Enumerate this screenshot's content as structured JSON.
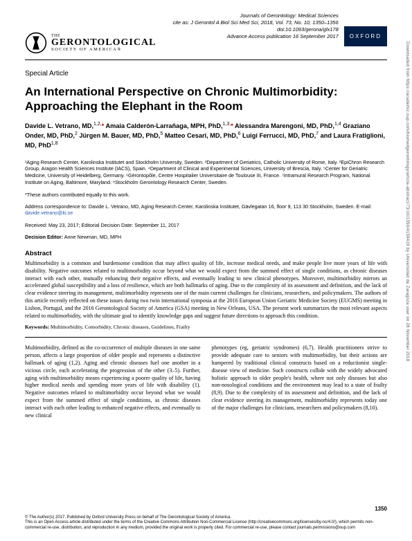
{
  "header": {
    "journal_line1": "Journals of Gerontology: Medical Sciences",
    "cite_line": "cite as: J Gerontol A Biol Sci Med Sci, 2018, Vol. 73, No. 10, 1350–1356",
    "doi": "doi:10.1093/gerona/glx178",
    "advance": "Advance Access publication 16 September 2017",
    "logo": {
      "line1": "THE",
      "line2": "GERONTOLOGICAL",
      "line3": "SOCIETY OF AMERICA®"
    },
    "publisher_badge": "OXFORD"
  },
  "article_type": "Special Article",
  "title": "An International Perspective on Chronic Multimorbidity: Approaching the Elephant in the Room",
  "authors_html": "Davide L. Vetrano, MD,<sup>1,2,</sup><span class='star'>*</span> Amaia Calderón-Larrañaga, MPH, PhD,<sup>1,3,</sup><span class='star'>*</span> Alessandra Marengoni, MD, PhD,<sup>1,4</sup> Graziano Onder, MD, PhD,<sup>2</sup> Jürgen M. Bauer, MD, PhD,<sup>5</sup> Matteo Cesari, MD, PhD,<sup>6</sup> Luigi Ferrucci, MD, PhD,<sup>7</sup> and Laura Fratiglioni, MD, PhD<sup>1,8</sup>",
  "affiliations": "¹Aging Research Center, Karolinska Institutet and Stockholm University, Sweden. ²Department of Geriatrics, Catholic University of Rome, Italy. ³EpiChron Research Group, Aragon Health Sciences Institute (IACS), Spain. ⁴Department of Clinical and Experimental Sciences, University of Brescia, Italy. ⁵Center for Geriatric Medicine, University of Heidelberg, Germany. ⁶Gérontopôle, Centre Hospitalier Universitaire de Toulouse III, France. ⁷Intramural Research Program, National Institute on Aging, Baltimore, Maryland. ⁸Stockholm Gerontology Research Center, Sweden.",
  "contrib_note": "*These authors contributed equally to this work.",
  "correspondence": {
    "text": "Address correspondence to: Davide L. Vetrano, MD, Aging Research Center, Karolinska Institutet, Gävlegatan 16, floor 9, 113 30 Stockholm, Sweden. E-mail: ",
    "email": "davide.vetrano@ki.se"
  },
  "dates": "Received: May 23, 2017; Editorial Decision Date: September 11, 2017",
  "editor": {
    "label": "Decision Editor:",
    "name": " Anne Newman, MD, MPH"
  },
  "abstract": {
    "heading": "Abstract",
    "text": "Multimorbidity is a common and burdensome condition that may affect quality of life, increase medical needs, and make people live more years of life with disability. Negative outcomes related to multimorbidity occur beyond what we would expect from the summed effect of single conditions, as chronic diseases interact with each other, mutually enhancing their negative effects, and eventually leading to new clinical phenotypes. Moreover, multimorbidity mirrors an accelerated global susceptibility and a loss of resilience, which are both hallmarks of aging. Due to the complexity of its assessment and definition, and the lack of clear evidence steering its management, multimorbidity represents one of the main current challenges for clinicians, researchers, and policymakers. The authors of this article recently reflected on these issues during two twin international symposia at the 2016 European Union Geriatric Medicine Society (EUGMS) meeting in Lisbon, Portugal, and the 2016 Gerontological Society of America (GSA) meeting in New Orleans, USA. The present work summarizes the most relevant aspects related to multimorbidity, with the ultimate goal to identify knowledge gaps and suggest future directions to approach this condition."
  },
  "keywords": {
    "label": "Keywords:",
    "text": " Multimorbidity, Comorbidity, Chronic diseases, Guidelines, Frailty"
  },
  "body": {
    "col1": "Multimorbidity, defined as the co-occurrence of multiple diseases in one same person, affects a large proportion of older people and represents a distinctive hallmark of aging (1,2). Aging and chronic diseases fuel one another in a vicious circle, each accelerating the progression of the other (3–5). Further, aging with multimorbidity means experiencing a poorer quality of life, having higher medical needs and spending more years of life with disability (1). Negative outcomes related to multimorbidity occur beyond what we would expect from the summed effect of single conditions, as chronic diseases interact with each other leading to enhanced negative effects, and eventually to new clinical ",
    "col2": "phenotypes (eg, geriatric syndromes) (6,7). Health practitioners strive to provide adequate care to seniors with multimorbidity, but their actions are hampered by traditional clinical constructs based on a reductionist single-disease view of medicine. Such constructs collide with the widely advocated holistic approach to older people's health, where not only diseases but also non-nosological conditions and the environment may lead to a state of frailty (8,9). Due to the complexity of its assessment and definition, and the lack of clear evidence steering its management, multimorbidity represents today one of the major challenges for clinicians, researchers and policymakers (8,10)."
  },
  "pagenum": "1350",
  "footer": "© The Author(s) 2017. Published by Oxford University Press on behalf of The Gerontological Society of America.\nThis is an Open Access article distributed under the terms of the Creative Commons Attribution Non-Commercial License (http://creativecommons.org/licenses/by-nc/4.0/), which permits non-commercial re-use, distribution, and reproduction in any medium, provided the original work is properly cited. For commercial re-use, please contact journals.permissions@oup.com",
  "side_text": "Downloaded from https://academic.oup.com/biomedgerontology/article-abstract/73/10/1350/4159419 by Universidad de Zaragoza user on 28 November 2018",
  "colors": {
    "oxford_bg": "#001e46",
    "link": "#2a5db0",
    "star": "#c00"
  }
}
